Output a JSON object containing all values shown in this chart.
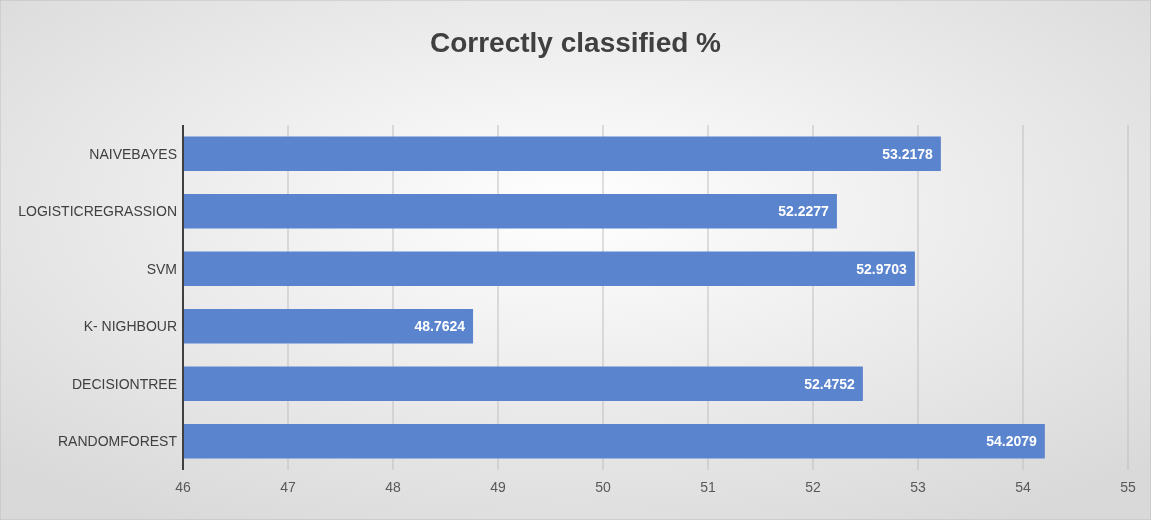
{
  "chart_data": {
    "type": "bar",
    "title": "Correctly classified %",
    "orientation": "horizontal",
    "categories": [
      "NAIVEBAYES",
      "LOGISTICREGRASSION",
      "SVM",
      "K- NIGHBOUR",
      "DECISIONTREE",
      "RANDOMFOREST"
    ],
    "values": [
      53.2178,
      52.2277,
      52.9703,
      48.7624,
      52.4752,
      54.2079
    ],
    "color": "#5b84cf",
    "xlim": [
      46,
      55
    ],
    "xticks": [
      46,
      47,
      48,
      49,
      50,
      51,
      52,
      53,
      54,
      55
    ],
    "grid": "x",
    "data_labels": true
  }
}
